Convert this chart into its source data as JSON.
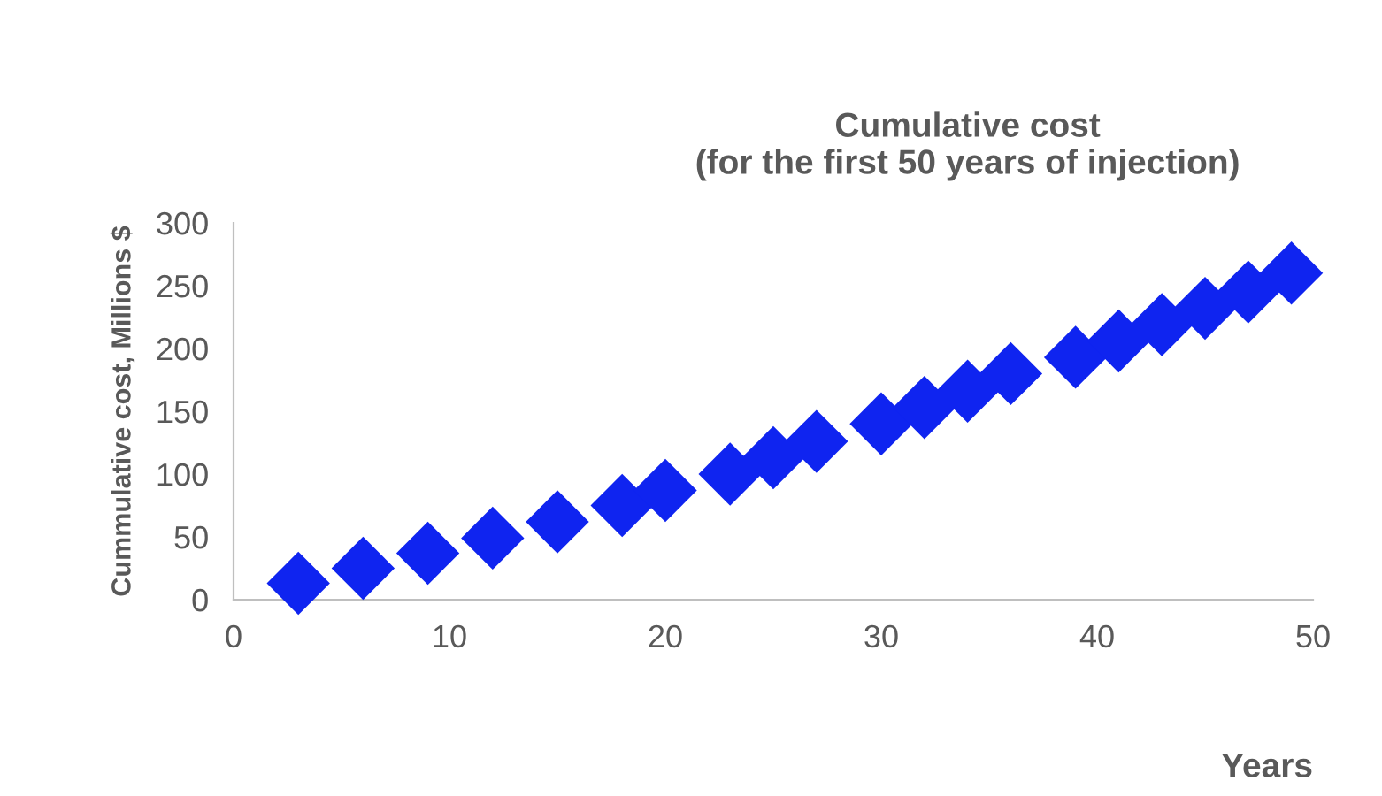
{
  "chart_data": {
    "type": "scatter",
    "title": "Cumulative cost\n(for the first 50 years of injection)",
    "xlabel": "Years",
    "ylabel": "Cummulative cost, Millions $",
    "series": [
      {
        "color": "#0f24f0",
        "x": [
          3,
          6,
          9,
          12,
          15,
          18,
          20,
          23,
          25,
          27,
          30,
          32,
          34,
          36,
          39,
          41,
          43,
          45,
          47,
          49
        ],
        "values": [
          13,
          25,
          37,
          49,
          62,
          75,
          87,
          100,
          113,
          126,
          140,
          153,
          166,
          180,
          193,
          206,
          219,
          232,
          245,
          260
        ]
      }
    ],
    "marker": "diamond",
    "xlim": [
      0,
      50
    ],
    "xticks": [
      0,
      10,
      20,
      30,
      40,
      50
    ],
    "ylim": [
      0,
      300
    ],
    "yticks": [
      0,
      50,
      100,
      150,
      200,
      250,
      300
    ],
    "grid": false,
    "legend": false
  }
}
